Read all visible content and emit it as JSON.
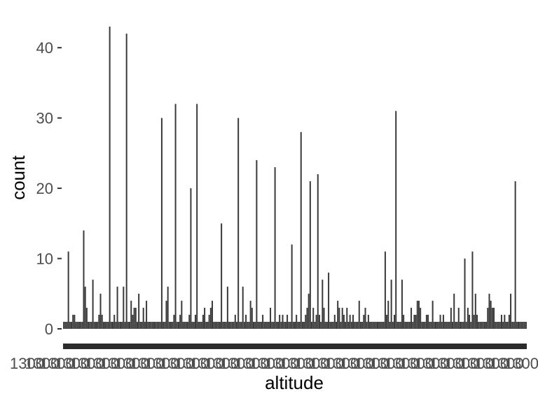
{
  "chart_data": {
    "type": "bar",
    "xlabel": "altitude",
    "ylabel": "count",
    "ylim": [
      0,
      44
    ],
    "yticks": [
      0,
      10,
      20,
      30,
      40
    ],
    "grid": false,
    "legend": "none",
    "bar_color": "#3a3a3a",
    "x_tick_labels_overlapping": true,
    "x_tick_label_glyph": "1300",
    "values": [
      1,
      1,
      1,
      11,
      1,
      1,
      2,
      2,
      1,
      1,
      1,
      1,
      1,
      14,
      6,
      3,
      1,
      1,
      1,
      7,
      1,
      1,
      1,
      2,
      5,
      2,
      1,
      1,
      1,
      1,
      43,
      1,
      1,
      2,
      1,
      6,
      1,
      1,
      1,
      6,
      1,
      42,
      1,
      1,
      4,
      2,
      3,
      3,
      1,
      5,
      1,
      1,
      3,
      1,
      4,
      1,
      1,
      1,
      1,
      1,
      1,
      1,
      1,
      1,
      30,
      1,
      1,
      4,
      6,
      1,
      1,
      1,
      2,
      32,
      1,
      1,
      2,
      4,
      1,
      1,
      1,
      1,
      2,
      20,
      1,
      1,
      2,
      32,
      1,
      1,
      1,
      2,
      3,
      1,
      1,
      2,
      3,
      4,
      1,
      1,
      1,
      1,
      1,
      15,
      1,
      1,
      1,
      6,
      1,
      1,
      1,
      1,
      2,
      1,
      30,
      1,
      1,
      6,
      1,
      2,
      1,
      1,
      4,
      3,
      1,
      1,
      24,
      1,
      1,
      1,
      2,
      1,
      1,
      1,
      1,
      3,
      1,
      1,
      23,
      1,
      1,
      2,
      1,
      2,
      1,
      1,
      2,
      1,
      1,
      12,
      1,
      1,
      2,
      1,
      1,
      28,
      1,
      1,
      2,
      3,
      5,
      21,
      1,
      3,
      1,
      2,
      22,
      2,
      1,
      7,
      3,
      1,
      1,
      8,
      1,
      1,
      1,
      2,
      1,
      4,
      3,
      1,
      3,
      2,
      1,
      3,
      1,
      2,
      1,
      2,
      1,
      1,
      1,
      4,
      1,
      1,
      2,
      3,
      1,
      2,
      1,
      1,
      1,
      1,
      1,
      1,
      1,
      1,
      1,
      1,
      11,
      2,
      4,
      1,
      7,
      1,
      2,
      31,
      1,
      1,
      1,
      7,
      2,
      1,
      1,
      1,
      1,
      3,
      1,
      2,
      2,
      4,
      4,
      3,
      1,
      1,
      1,
      2,
      2,
      1,
      1,
      4,
      1,
      1,
      1,
      1,
      2,
      1,
      2,
      1,
      1,
      1,
      1,
      3,
      1,
      5,
      1,
      1,
      3,
      1,
      1,
      1,
      10,
      1,
      3,
      2,
      1,
      11,
      2,
      5,
      2,
      1,
      1,
      1,
      1,
      1,
      1,
      3,
      5,
      4,
      3,
      3,
      1,
      1,
      1,
      1,
      2,
      1,
      2,
      1,
      1,
      2,
      5,
      1,
      1,
      21,
      1,
      1,
      1,
      1,
      1,
      1,
      1
    ]
  }
}
